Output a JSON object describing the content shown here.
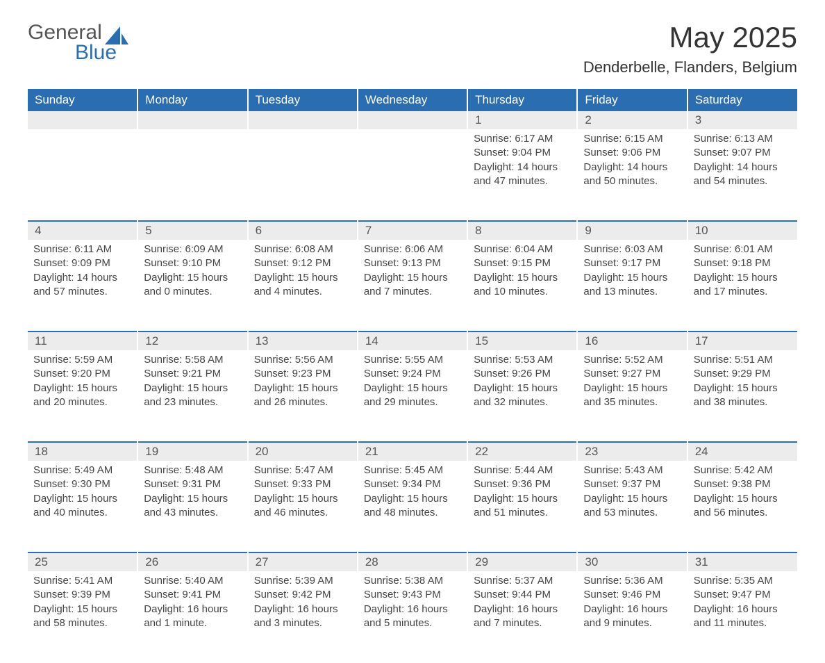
{
  "logo": {
    "text1": "General",
    "text2": "Blue",
    "sail_color": "#2a6db0"
  },
  "title": "May 2025",
  "location": "Denderbelle, Flanders, Belgium",
  "header_bg": "#2a6db0",
  "header_fg": "#ffffff",
  "daynum_bg": "#ececec",
  "accent_border": "#2a6db0",
  "weekdays": [
    "Sunday",
    "Monday",
    "Tuesday",
    "Wednesday",
    "Thursday",
    "Friday",
    "Saturday"
  ],
  "weeks": [
    [
      null,
      null,
      null,
      null,
      {
        "day": 1,
        "sunrise": "6:17 AM",
        "sunset": "9:04 PM",
        "daylight": "14 hours and 47 minutes."
      },
      {
        "day": 2,
        "sunrise": "6:15 AM",
        "sunset": "9:06 PM",
        "daylight": "14 hours and 50 minutes."
      },
      {
        "day": 3,
        "sunrise": "6:13 AM",
        "sunset": "9:07 PM",
        "daylight": "14 hours and 54 minutes."
      }
    ],
    [
      {
        "day": 4,
        "sunrise": "6:11 AM",
        "sunset": "9:09 PM",
        "daylight": "14 hours and 57 minutes."
      },
      {
        "day": 5,
        "sunrise": "6:09 AM",
        "sunset": "9:10 PM",
        "daylight": "15 hours and 0 minutes."
      },
      {
        "day": 6,
        "sunrise": "6:08 AM",
        "sunset": "9:12 PM",
        "daylight": "15 hours and 4 minutes."
      },
      {
        "day": 7,
        "sunrise": "6:06 AM",
        "sunset": "9:13 PM",
        "daylight": "15 hours and 7 minutes."
      },
      {
        "day": 8,
        "sunrise": "6:04 AM",
        "sunset": "9:15 PM",
        "daylight": "15 hours and 10 minutes."
      },
      {
        "day": 9,
        "sunrise": "6:03 AM",
        "sunset": "9:17 PM",
        "daylight": "15 hours and 13 minutes."
      },
      {
        "day": 10,
        "sunrise": "6:01 AM",
        "sunset": "9:18 PM",
        "daylight": "15 hours and 17 minutes."
      }
    ],
    [
      {
        "day": 11,
        "sunrise": "5:59 AM",
        "sunset": "9:20 PM",
        "daylight": "15 hours and 20 minutes."
      },
      {
        "day": 12,
        "sunrise": "5:58 AM",
        "sunset": "9:21 PM",
        "daylight": "15 hours and 23 minutes."
      },
      {
        "day": 13,
        "sunrise": "5:56 AM",
        "sunset": "9:23 PM",
        "daylight": "15 hours and 26 minutes."
      },
      {
        "day": 14,
        "sunrise": "5:55 AM",
        "sunset": "9:24 PM",
        "daylight": "15 hours and 29 minutes."
      },
      {
        "day": 15,
        "sunrise": "5:53 AM",
        "sunset": "9:26 PM",
        "daylight": "15 hours and 32 minutes."
      },
      {
        "day": 16,
        "sunrise": "5:52 AM",
        "sunset": "9:27 PM",
        "daylight": "15 hours and 35 minutes."
      },
      {
        "day": 17,
        "sunrise": "5:51 AM",
        "sunset": "9:29 PM",
        "daylight": "15 hours and 38 minutes."
      }
    ],
    [
      {
        "day": 18,
        "sunrise": "5:49 AM",
        "sunset": "9:30 PM",
        "daylight": "15 hours and 40 minutes."
      },
      {
        "day": 19,
        "sunrise": "5:48 AM",
        "sunset": "9:31 PM",
        "daylight": "15 hours and 43 minutes."
      },
      {
        "day": 20,
        "sunrise": "5:47 AM",
        "sunset": "9:33 PM",
        "daylight": "15 hours and 46 minutes."
      },
      {
        "day": 21,
        "sunrise": "5:45 AM",
        "sunset": "9:34 PM",
        "daylight": "15 hours and 48 minutes."
      },
      {
        "day": 22,
        "sunrise": "5:44 AM",
        "sunset": "9:36 PM",
        "daylight": "15 hours and 51 minutes."
      },
      {
        "day": 23,
        "sunrise": "5:43 AM",
        "sunset": "9:37 PM",
        "daylight": "15 hours and 53 minutes."
      },
      {
        "day": 24,
        "sunrise": "5:42 AM",
        "sunset": "9:38 PM",
        "daylight": "15 hours and 56 minutes."
      }
    ],
    [
      {
        "day": 25,
        "sunrise": "5:41 AM",
        "sunset": "9:39 PM",
        "daylight": "15 hours and 58 minutes."
      },
      {
        "day": 26,
        "sunrise": "5:40 AM",
        "sunset": "9:41 PM",
        "daylight": "16 hours and 1 minute."
      },
      {
        "day": 27,
        "sunrise": "5:39 AM",
        "sunset": "9:42 PM",
        "daylight": "16 hours and 3 minutes."
      },
      {
        "day": 28,
        "sunrise": "5:38 AM",
        "sunset": "9:43 PM",
        "daylight": "16 hours and 5 minutes."
      },
      {
        "day": 29,
        "sunrise": "5:37 AM",
        "sunset": "9:44 PM",
        "daylight": "16 hours and 7 minutes."
      },
      {
        "day": 30,
        "sunrise": "5:36 AM",
        "sunset": "9:46 PM",
        "daylight": "16 hours and 9 minutes."
      },
      {
        "day": 31,
        "sunrise": "5:35 AM",
        "sunset": "9:47 PM",
        "daylight": "16 hours and 11 minutes."
      }
    ]
  ],
  "labels": {
    "sunrise": "Sunrise:",
    "sunset": "Sunset:",
    "daylight": "Daylight:"
  }
}
